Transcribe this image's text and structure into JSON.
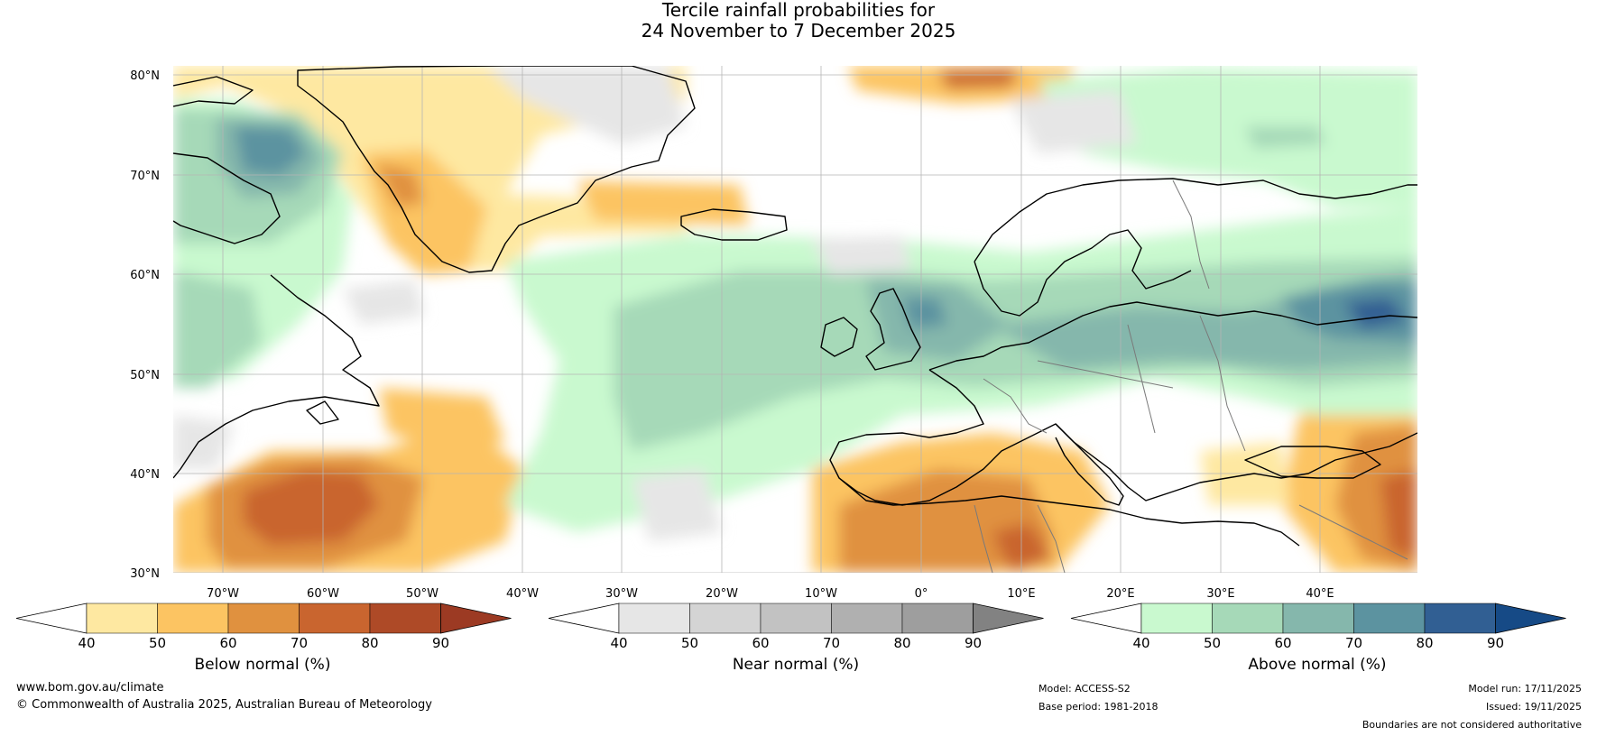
{
  "title": {
    "line1": "Tercile rainfall probabilities for",
    "line2": "24 November to 7 December 2025"
  },
  "map": {
    "lat_ticks": [
      "30°N",
      "40°N",
      "50°N",
      "60°N",
      "70°N",
      "80°N"
    ],
    "lon_ticks": [
      "70°W",
      "60°W",
      "50°W",
      "40°W",
      "30°W",
      "20°W",
      "10°W",
      "0°",
      "10°E",
      "20°E",
      "30°E",
      "40°E"
    ]
  },
  "legends": [
    {
      "name": "below",
      "label": "Below normal (%)",
      "ticks": [
        "40",
        "50",
        "60",
        "70",
        "80",
        "90"
      ],
      "colors": [
        "#ffffff",
        "#fee8a1",
        "#fcc462",
        "#e0913f",
        "#c9652f",
        "#ae4a27",
        "#9c3a23"
      ]
    },
    {
      "name": "near",
      "label": "Near normal (%)",
      "ticks": [
        "40",
        "50",
        "60",
        "70",
        "80",
        "90"
      ],
      "colors": [
        "#ffffff",
        "#e6e6e6",
        "#d4d4d4",
        "#c2c2c2",
        "#b0b0b0",
        "#9e9e9e",
        "#828282"
      ]
    },
    {
      "name": "above",
      "label": "Above normal (%)",
      "ticks": [
        "40",
        "50",
        "60",
        "70",
        "80",
        "90"
      ],
      "colors": [
        "#ffffff",
        "#c9f9cf",
        "#a6d9b8",
        "#85b7ac",
        "#5c93a0",
        "#315f93",
        "#164a86"
      ]
    }
  ],
  "footer": {
    "url": "www.bom.gov.au/climate",
    "copyright": "© Commonwealth of Australia 2025, Australian Bureau of Meteorology",
    "model": "Model: ACCESS-S2",
    "base_period": "Base period: 1981-2018",
    "model_run": "Model run: 17/11/2025",
    "issued": "Issued: 19/11/2025",
    "disclaimer": "Boundaries are not considered authoritative"
  }
}
